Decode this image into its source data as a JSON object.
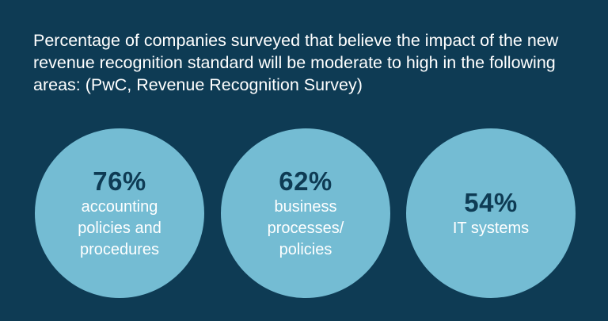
{
  "heading": {
    "lines": [
      "Percentage of companies surveyed that believe the impact of the new",
      "revenue recognition standard will be moderate to high in the following",
      "areas: (PwC, Revenue Recognition Survey)"
    ]
  },
  "stats": [
    {
      "value": "76%",
      "label_lines": [
        "accounting",
        "policies and",
        "procedures"
      ]
    },
    {
      "value": "62%",
      "label_lines": [
        "business",
        "processes/",
        "policies"
      ]
    },
    {
      "value": "54%",
      "label_lines": [
        "IT systems"
      ]
    }
  ],
  "colors": {
    "background": "#0e3b54",
    "circle": "#74bcd3",
    "value_text": "#0e3b54",
    "label_text": "#ffffff"
  }
}
